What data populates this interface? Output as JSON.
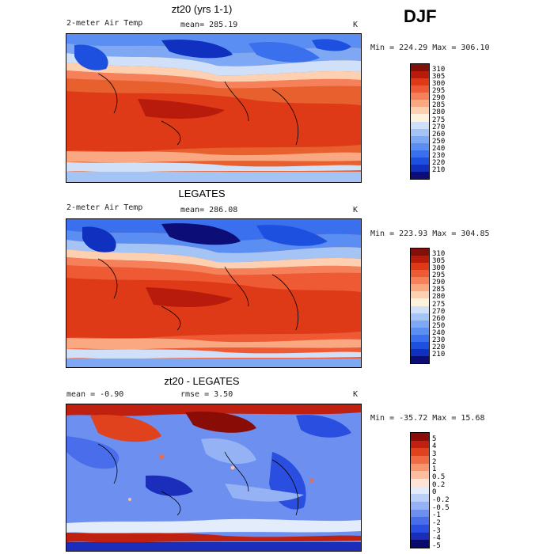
{
  "season": "DJF",
  "colors": {
    "abs_scale": [
      "#0d0d78",
      "#1030c0",
      "#1e50e0",
      "#3a70ee",
      "#5a8ef2",
      "#7fa8f4",
      "#a5c4f6",
      "#cfe0f8",
      "#fdf2dc",
      "#fcd0b0",
      "#f9a882",
      "#f5805a",
      "#ee5a34",
      "#de3a18",
      "#b81a0c",
      "#801008"
    ],
    "diff_scale": [
      "#0a0a6e",
      "#1a2ebb",
      "#2a4edf",
      "#4a6eeb",
      "#6d90f0",
      "#95b2f4",
      "#bcd0f7",
      "#e3ecfb",
      "#fde4d4",
      "#fbbfa0",
      "#f7956e",
      "#f06a42",
      "#e0421e",
      "#bf2010",
      "#8a0c06"
    ],
    "ocean_warm": "#e8602e"
  },
  "panels": [
    {
      "title": "zt20 (yrs 1-1)",
      "left_text": "2-meter Air Temp",
      "mean_text": "mean= 285.19",
      "unit": "K",
      "minmax": "Min = 224.29 Max = 306.10",
      "colorbar_labels": [
        "310",
        "305",
        "300",
        "295",
        "290",
        "285",
        "280",
        "275",
        "270",
        "260",
        "250",
        "240",
        "230",
        "220",
        "210"
      ]
    },
    {
      "title": "LEGATES",
      "left_text": "2-meter Air Temp",
      "mean_text": "mean= 286.08",
      "unit": "K",
      "minmax": "Min = 223.93 Max = 304.85",
      "colorbar_labels": [
        "310",
        "305",
        "300",
        "295",
        "290",
        "285",
        "280",
        "275",
        "270",
        "260",
        "250",
        "240",
        "230",
        "220",
        "210"
      ]
    },
    {
      "title": "zt20 - LEGATES",
      "left_text": "mean =   -0.90",
      "mean_text": "rmse =    3.50",
      "unit": "K",
      "minmax": "Min = -35.72 Max =  15.68",
      "colorbar_labels": [
        "5",
        "4",
        "3",
        "2",
        "1",
        "0.5",
        "0.2",
        "0",
        "-0.2",
        "-0.5",
        "-1",
        "-2",
        "-3",
        "-4",
        "-5"
      ]
    }
  ]
}
